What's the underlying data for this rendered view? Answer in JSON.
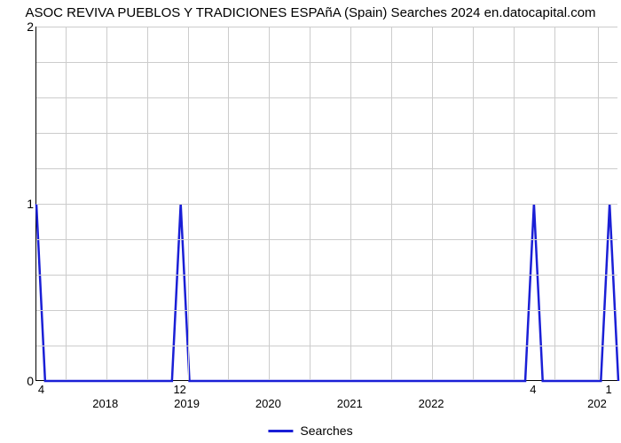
{
  "title": "ASOC REVIVA PUEBLOS Y TRADICIONES ESPAñA (Spain) Searches 2024 en.datocapital.com",
  "chart": {
    "type": "line",
    "background_color": "#ffffff",
    "grid_color": "#cccccc",
    "line_color": "#1a1fd6",
    "line_width": 2.5,
    "ylim": [
      0,
      2
    ],
    "yticks": [
      0,
      1,
      2
    ],
    "y_minor_count_between": 4,
    "xticks": [
      "2018",
      "2019",
      "2020",
      "2021",
      "2022",
      "202"
    ],
    "xtick_positions": [
      0.12,
      0.26,
      0.4,
      0.54,
      0.68,
      0.965
    ],
    "data_labels": [
      {
        "text": "4",
        "pos": 0.01
      },
      {
        "text": "12",
        "pos": 0.248
      },
      {
        "text": "4",
        "pos": 0.855
      },
      {
        "text": "1",
        "pos": 0.985
      }
    ],
    "grid_v_positions": [
      0.05,
      0.12,
      0.19,
      0.26,
      0.33,
      0.4,
      0.47,
      0.54,
      0.61,
      0.68,
      0.75,
      0.82,
      0.89,
      0.965
    ],
    "series": {
      "name": "Searches",
      "points": [
        [
          0.0,
          1.0
        ],
        [
          0.015,
          0.0
        ],
        [
          0.233,
          0.0
        ],
        [
          0.248,
          1.0
        ],
        [
          0.263,
          0.0
        ],
        [
          0.84,
          0.0
        ],
        [
          0.855,
          1.0
        ],
        [
          0.87,
          0.0
        ],
        [
          0.97,
          0.0
        ],
        [
          0.985,
          1.0
        ],
        [
          1.0,
          0.0
        ]
      ]
    }
  },
  "legend_label": "Searches"
}
